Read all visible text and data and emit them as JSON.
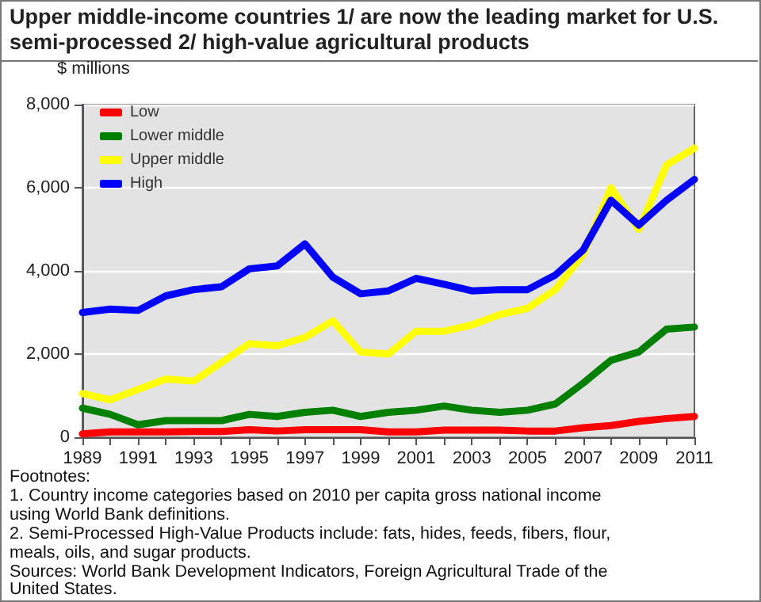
{
  "chart_data": {
    "type": "line",
    "title": "Upper middle-income countries 1/ are now the leading market for U.S. semi-processed 2/ high-value agricultural products",
    "ylabel": "$ millions",
    "categories": [
      "1989",
      null,
      "1991",
      null,
      "1993",
      null,
      "1995",
      null,
      "1997",
      null,
      "1999",
      null,
      "2001",
      null,
      "2003",
      null,
      "2005",
      null,
      "2007",
      null,
      "2009",
      null,
      "2011"
    ],
    "series": [
      {
        "name": "Low",
        "color": "#ff0000",
        "values": [
          80,
          130,
          130,
          130,
          140,
          140,
          180,
          150,
          180,
          180,
          180,
          130,
          130,
          170,
          170,
          170,
          150,
          150,
          230,
          280,
          380,
          450,
          500
        ]
      },
      {
        "name": "Lower middle",
        "color": "#008000",
        "values": [
          700,
          550,
          300,
          400,
          400,
          400,
          550,
          500,
          600,
          650,
          500,
          600,
          650,
          750,
          650,
          600,
          650,
          800,
          1300,
          1850,
          2050,
          2600,
          2650
        ]
      },
      {
        "name": "Upper middle",
        "color": "#ffff00",
        "values": [
          1050,
          900,
          1150,
          1400,
          1350,
          1800,
          2250,
          2200,
          2400,
          2800,
          2050,
          2000,
          2550,
          2550,
          2700,
          2950,
          3100,
          3550,
          4400,
          6000,
          5000,
          6550,
          6950
        ]
      },
      {
        "name": "High",
        "color": "#0000ff",
        "values": [
          3000,
          3080,
          3050,
          3400,
          3550,
          3620,
          4050,
          4120,
          4650,
          3850,
          3450,
          3520,
          3820,
          3680,
          3520,
          3550,
          3550,
          3900,
          4500,
          5700,
          5100,
          5700,
          6200
        ]
      }
    ],
    "ylim": [
      0,
      8000
    ],
    "yticks": [
      {
        "value": 0,
        "label": "0"
      },
      {
        "value": 2000,
        "label": "2,000"
      },
      {
        "value": 4000,
        "label": "4,000"
      },
      {
        "value": 6000,
        "label": "6,000"
      },
      {
        "value": 8000,
        "label": "8,000"
      }
    ],
    "grid": "y",
    "legend": "top left",
    "marker": "none",
    "line_style": "solid",
    "annotations": [
      "Footnotes:",
      "1. Country income categories based on 2010 per capita gross national income using World Bank definitions.",
      "2. Semi-Processed High-Value Products include: fats, hides, feeds, fibers, flour, meals, oils, and sugar products.",
      "Sources: World Bank Development Indicators, Foreign Agricultural Trade of the United States."
    ]
  }
}
